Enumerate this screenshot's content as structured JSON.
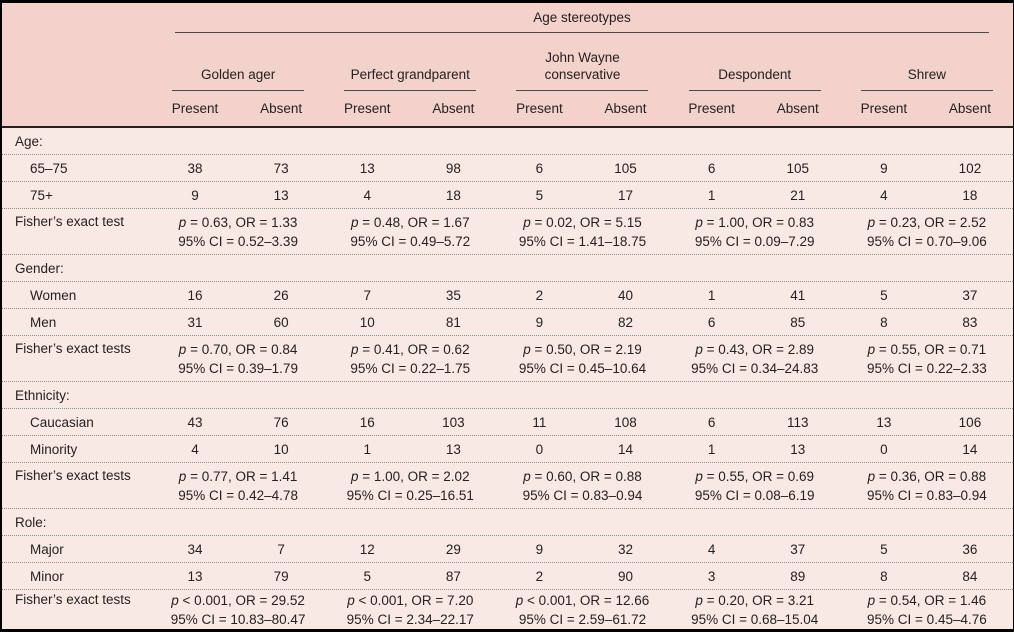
{
  "table": {
    "spanner": "Age stereotypes",
    "p_symbol": "p",
    "groups": [
      {
        "label": "Golden ager"
      },
      {
        "label": "Perfect grandparent"
      },
      {
        "label": "John Wayne conservative"
      },
      {
        "label": "Despondent"
      },
      {
        "label": "Shrew"
      }
    ],
    "subheaders": [
      "Present",
      "Absent"
    ],
    "rows": [
      {
        "kind": "section",
        "label": "Age:"
      },
      {
        "kind": "data",
        "label": "65–75",
        "values": [
          "38",
          "73",
          "13",
          "98",
          "6",
          "105",
          "6",
          "105",
          "9",
          "102"
        ]
      },
      {
        "kind": "data",
        "label": "75+",
        "values": [
          "9",
          "13",
          "4",
          "18",
          "5",
          "17",
          "1",
          "21",
          "4",
          "18"
        ]
      },
      {
        "kind": "fisher",
        "label": "Fisher’s exact test",
        "cells": [
          {
            "stat": " = 0.63, OR = 1.33",
            "ci": "95% CI = 0.52–3.39"
          },
          {
            "stat": " = 0.48, OR = 1.67",
            "ci": "95% CI = 0.49–5.72"
          },
          {
            "stat": " = 0.02, OR = 5.15",
            "ci": "95% CI = 1.41–18.75"
          },
          {
            "stat": " = 1.00, OR = 0.83",
            "ci": "95% CI = 0.09–7.29"
          },
          {
            "stat": " = 0.23, OR = 2.52",
            "ci": "95% CI = 0.70–9.06"
          }
        ]
      },
      {
        "kind": "section",
        "label": "Gender:"
      },
      {
        "kind": "data",
        "label": "Women",
        "values": [
          "16",
          "26",
          "7",
          "35",
          "2",
          "40",
          "1",
          "41",
          "5",
          "37"
        ]
      },
      {
        "kind": "data",
        "label": "Men",
        "values": [
          "31",
          "60",
          "10",
          "81",
          "9",
          "82",
          "6",
          "85",
          "8",
          "83"
        ]
      },
      {
        "kind": "fisher",
        "label": "Fisher’s exact tests",
        "cells": [
          {
            "stat": " = 0.70, OR = 0.84",
            "ci": "95% CI = 0.39–1.79"
          },
          {
            "stat": " = 0.41, OR = 0.62",
            "ci": "95% CI = 0.22–1.75"
          },
          {
            "stat": " = 0.50, OR = 2.19",
            "ci": "95% CI = 0.45–10.64"
          },
          {
            "stat": " = 0.43, OR = 2.89",
            "ci": "95% CI = 0.34–24.83"
          },
          {
            "stat": " = 0.55, OR = 0.71",
            "ci": "95% CI = 0.22–2.33"
          }
        ]
      },
      {
        "kind": "section",
        "label": "Ethnicity:"
      },
      {
        "kind": "data",
        "label": "Caucasian",
        "values": [
          "43",
          "76",
          "16",
          "103",
          "11",
          "108",
          "6",
          "113",
          "13",
          "106"
        ]
      },
      {
        "kind": "data",
        "label": "Minority",
        "values": [
          "4",
          "10",
          "1",
          "13",
          "0",
          "14",
          "1",
          "13",
          "0",
          "14"
        ]
      },
      {
        "kind": "fisher",
        "label": "Fisher’s exact tests",
        "cells": [
          {
            "stat": " = 0.77, OR = 1.41",
            "ci": "95% CI = 0.42–4.78"
          },
          {
            "stat": " = 1.00, OR = 2.02",
            "ci": "95% CI = 0.25–16.51"
          },
          {
            "stat": " = 0.60, OR = 0.88",
            "ci": "95% CI = 0.83–0.94"
          },
          {
            "stat": " = 0.55, OR = 0.69",
            "ci": "95% CI = 0.08–6.19"
          },
          {
            "stat": " = 0.36, OR = 0.88",
            "ci": "95% CI = 0.83–0.94"
          }
        ]
      },
      {
        "kind": "section",
        "label": "Role:"
      },
      {
        "kind": "data",
        "label": "Major",
        "values": [
          "34",
          "7",
          "12",
          "29",
          "9",
          "32",
          "4",
          "37",
          "5",
          "36"
        ]
      },
      {
        "kind": "data",
        "label": "Minor",
        "values": [
          "13",
          "79",
          "5",
          "87",
          "2",
          "90",
          "3",
          "89",
          "8",
          "84"
        ]
      },
      {
        "kind": "fisher",
        "label": "Fisher’s exact tests",
        "cells": [
          {
            "stat": " < 0.001, OR = 29.52",
            "ci": "95% CI = 10.83–80.47"
          },
          {
            "stat": " < 0.001, OR = 7.20",
            "ci": "95% CI = 2.34–22.17"
          },
          {
            "stat": " < 0.001, OR = 12.66",
            "ci": "95% CI = 2.59–61.72"
          },
          {
            "stat": " = 0.20, OR = 3.21",
            "ci": "95% CI = 0.68–15.04"
          },
          {
            "stat": " = 0.54, OR = 1.46",
            "ci": "95% CI = 0.45–4.76"
          }
        ]
      }
    ],
    "colors": {
      "header_bg": "#f3d2cc",
      "body_bg": "#f9e9e5",
      "outer_border": "#000000",
      "rule_line": "#4a4a4a",
      "dotted_line": "#8f8f8f",
      "text": "#262020"
    }
  }
}
